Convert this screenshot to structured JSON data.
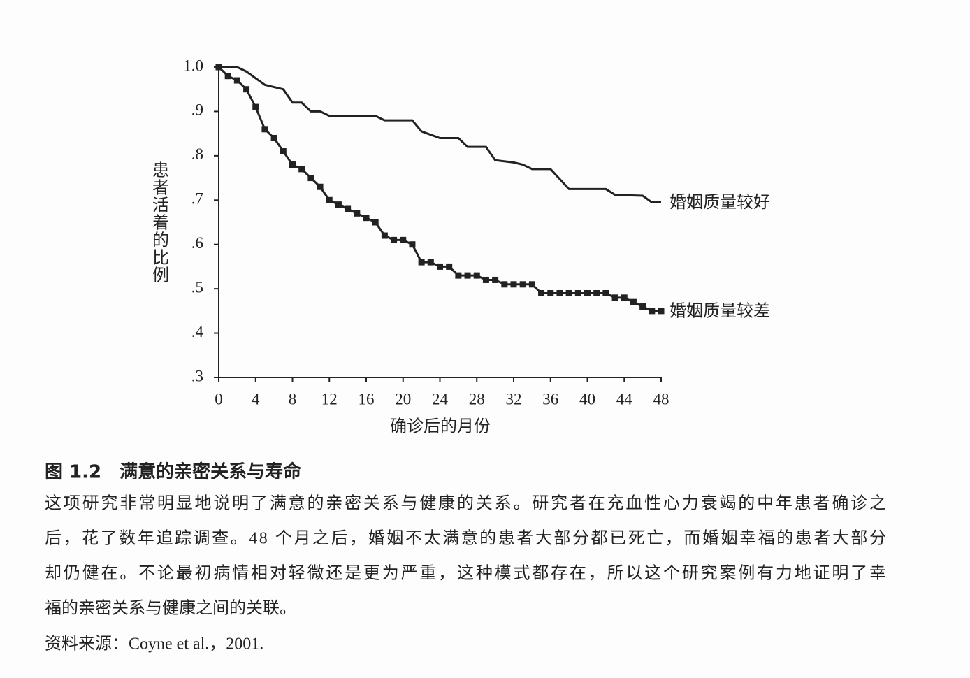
{
  "chart_data": {
    "type": "line",
    "x_label": "确诊后的月份",
    "y_label": "患者活着的比例",
    "xlim": [
      0,
      48
    ],
    "xticks": [
      0,
      4,
      8,
      12,
      16,
      20,
      24,
      28,
      32,
      36,
      40,
      44,
      48
    ],
    "ylim": [
      0.3,
      1.0
    ],
    "yticks": [
      {
        "value": 0.3,
        "label": ".3"
      },
      {
        "value": 0.4,
        "label": ".4"
      },
      {
        "value": 0.5,
        "label": ".5"
      },
      {
        "value": 0.6,
        "label": ".6"
      },
      {
        "value": 0.7,
        "label": ".7"
      },
      {
        "value": 0.8,
        "label": ".8"
      },
      {
        "value": 0.9,
        "label": ".9"
      },
      {
        "value": 1.0,
        "label": "1.0"
      }
    ],
    "series": [
      {
        "name": "婚姻质量较好",
        "color": "#222222",
        "markers": false,
        "x": [
          0,
          2,
          3,
          4,
          5,
          6,
          7,
          8,
          9,
          10,
          11,
          12,
          17,
          18,
          21,
          22,
          24,
          26,
          27,
          29,
          30,
          32,
          33,
          34,
          36,
          38,
          42,
          43,
          46,
          47,
          48
        ],
        "values": [
          1.0,
          1.0,
          0.99,
          0.975,
          0.96,
          0.955,
          0.95,
          0.92,
          0.92,
          0.9,
          0.9,
          0.89,
          0.89,
          0.88,
          0.88,
          0.855,
          0.84,
          0.84,
          0.82,
          0.82,
          0.79,
          0.785,
          0.78,
          0.77,
          0.77,
          0.725,
          0.725,
          0.712,
          0.71,
          0.695,
          0.695
        ]
      },
      {
        "name": "婚姻质量较差",
        "color": "#222222",
        "markers": true,
        "x": [
          0,
          1,
          2,
          3,
          4,
          5,
          6,
          7,
          8,
          9,
          10,
          11,
          12,
          13,
          14,
          15,
          16,
          17,
          18,
          19,
          20,
          21,
          22,
          23,
          24,
          25,
          26,
          27,
          28,
          29,
          30,
          31,
          32,
          33,
          34,
          35,
          36,
          37,
          38,
          39,
          40,
          41,
          42,
          43,
          44,
          45,
          46,
          47,
          48
        ],
        "values": [
          1.0,
          0.98,
          0.97,
          0.95,
          0.91,
          0.86,
          0.84,
          0.81,
          0.78,
          0.77,
          0.75,
          0.73,
          0.7,
          0.69,
          0.68,
          0.67,
          0.66,
          0.65,
          0.62,
          0.61,
          0.61,
          0.6,
          0.56,
          0.56,
          0.55,
          0.55,
          0.53,
          0.53,
          0.53,
          0.52,
          0.52,
          0.51,
          0.51,
          0.51,
          0.51,
          0.49,
          0.49,
          0.49,
          0.49,
          0.49,
          0.49,
          0.49,
          0.49,
          0.48,
          0.48,
          0.47,
          0.46,
          0.45,
          0.45
        ]
      }
    ]
  },
  "caption": {
    "title": "图 1.2　满意的亲密关系与寿命",
    "lines": [
      "这项研究非常明显地说明了满意的亲密关系与健康的关系。研究者在充血性心力衰竭的中年患者确诊之",
      "后，花了数年追踪调查。48 个月之后，婚姻不太满意的患者大部分都已死亡，而婚姻幸福的患者大部分",
      "却仍健在。不论最初病情相对轻微还是更为严重，这种模式都存在，所以这个研究案例有力地证明了幸",
      "福的亲密关系与健康之间的关联。"
    ],
    "source": "资料来源：Coyne et al.，2001."
  }
}
